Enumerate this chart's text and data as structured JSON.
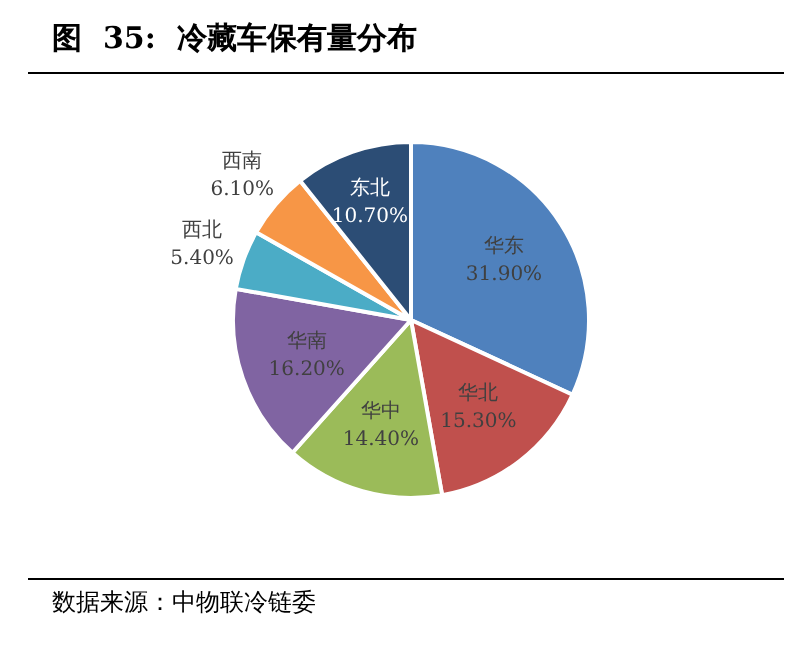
{
  "chart_data": {
    "type": "pie",
    "title": "图  35:  冷藏车保有量分布",
    "categories": [
      "华东",
      "华北",
      "华中",
      "华南",
      "西北",
      "西南",
      "东北"
    ],
    "values": [
      31.9,
      15.3,
      14.4,
      16.2,
      5.4,
      6.1,
      10.7
    ],
    "value_labels": [
      "31.90%",
      "15.30%",
      "14.40%",
      "16.20%",
      "5.40%",
      "6.10%",
      "10.70%"
    ],
    "colors": [
      "#4f81bd",
      "#c0504d",
      "#9bbb59",
      "#8064a2",
      "#4bacc6",
      "#f79646",
      "#2c4d75"
    ],
    "legend": false,
    "annotations": [
      "数据来源：中物联冷链委"
    ]
  }
}
